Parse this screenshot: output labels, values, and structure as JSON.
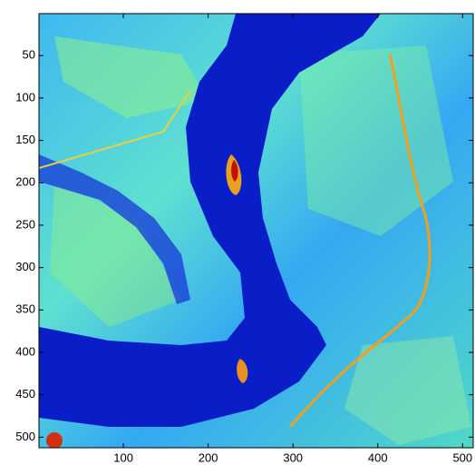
{
  "chart_data": {
    "type": "image",
    "xlim": [
      0.5,
      512.5
    ],
    "ylim": [
      0.5,
      512.5
    ],
    "y_reversed": true,
    "xticks": [
      100,
      200,
      300,
      400,
      500
    ],
    "yticks": [
      50,
      100,
      150,
      200,
      250,
      300,
      350,
      400,
      450,
      500
    ]
  }
}
